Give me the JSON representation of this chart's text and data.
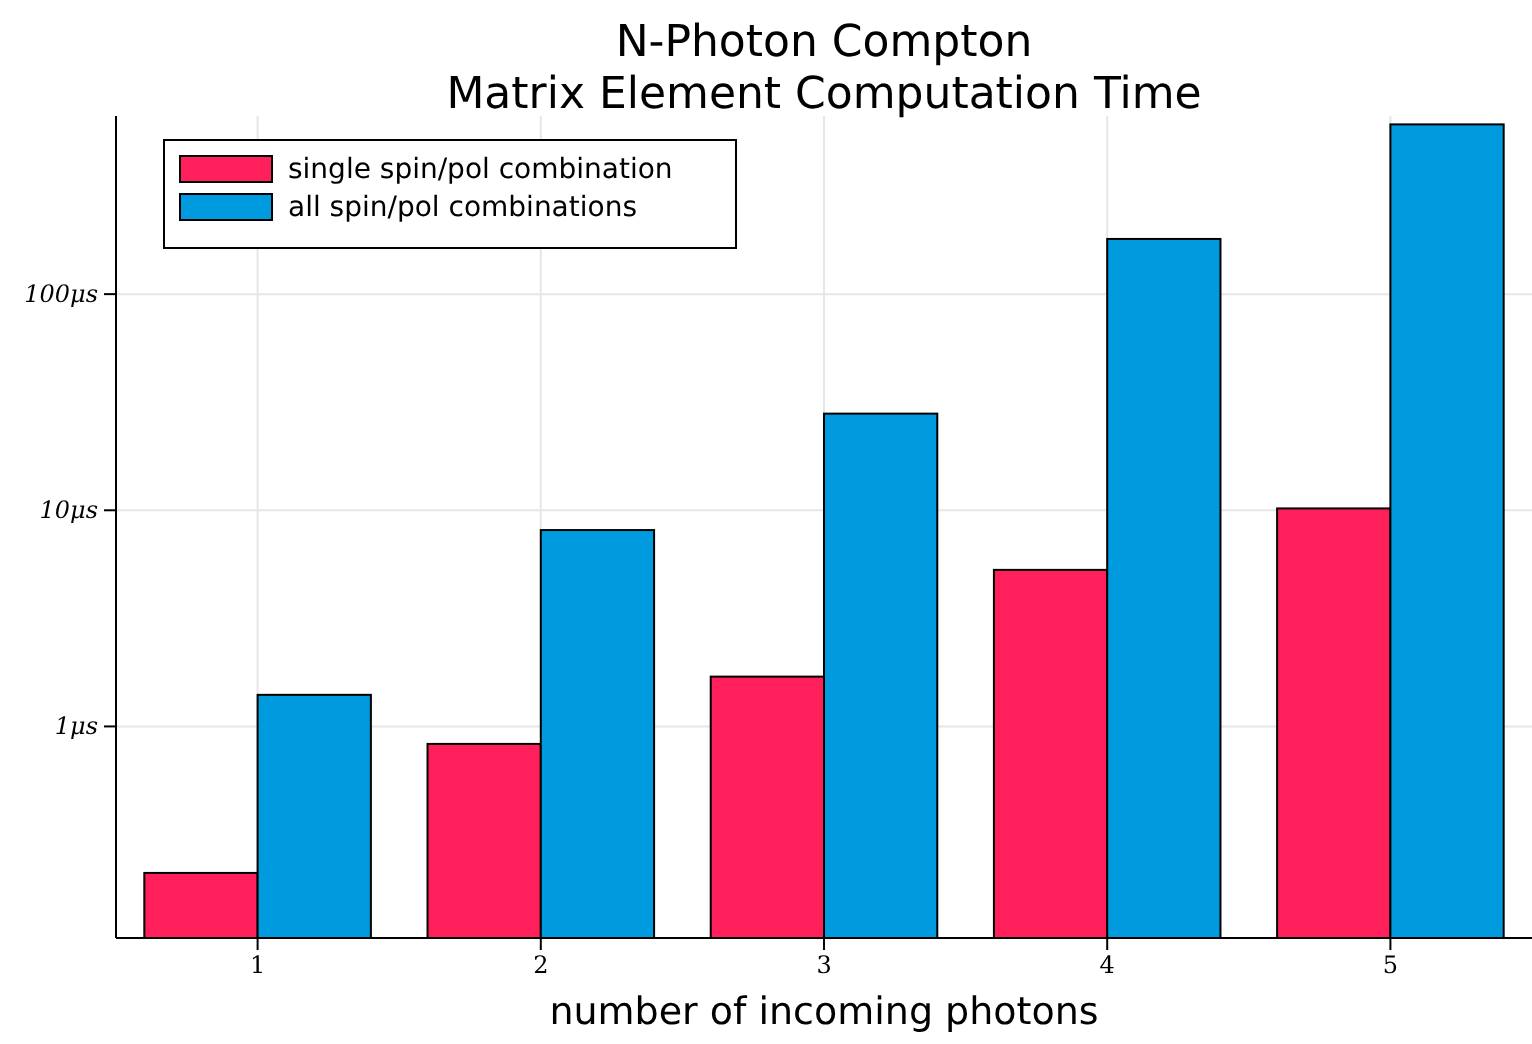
{
  "chart_data": {
    "type": "bar",
    "title": "N-Photon Compton\nMatrix Element Computation Time",
    "xlabel": "number of incoming photons",
    "categories": [
      "1",
      "2",
      "3",
      "4",
      "5"
    ],
    "series": [
      {
        "name": "single spin/pol combination",
        "color": "#ff1f5b",
        "values": [
          0.21,
          0.83,
          1.7,
          5.3,
          10.2
        ]
      },
      {
        "name": "all spin/pol combinations",
        "color": "#009ade",
        "values": [
          1.4,
          8.1,
          28,
          180,
          610
        ]
      }
    ],
    "log": true,
    "ylim": [
      0.105,
      667
    ],
    "yticks": [
      {
        "value": 1,
        "label": "1μs"
      },
      {
        "value": 10,
        "label": "10μs"
      },
      {
        "value": 100,
        "label": "100μs"
      }
    ],
    "grid": true,
    "legend": "top left"
  }
}
